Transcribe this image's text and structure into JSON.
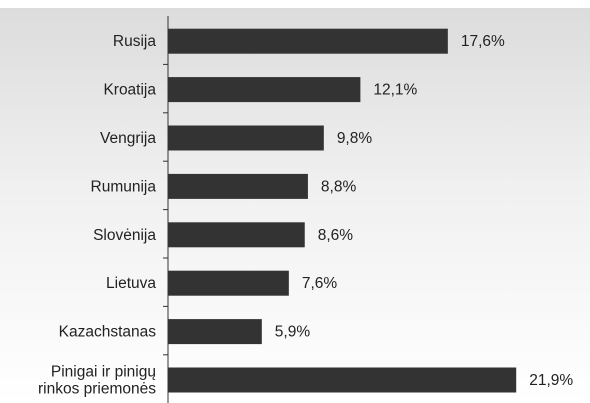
{
  "chart_data": {
    "type": "bar",
    "orientation": "horizontal",
    "title": "",
    "xlabel": "",
    "ylabel": "",
    "categories": [
      [
        "Rusija"
      ],
      [
        "Kroatija"
      ],
      [
        "Vengrija"
      ],
      [
        "Rumunija"
      ],
      [
        "Slovėnija"
      ],
      [
        "Lietuva"
      ],
      [
        "Kazachstanas"
      ],
      [
        "Pinigai ir pinigų",
        "rinkos priemonės"
      ]
    ],
    "values": [
      17.6,
      12.1,
      9.8,
      8.8,
      8.6,
      7.6,
      5.9,
      21.9
    ],
    "value_labels": [
      "17,6%",
      "12,1%",
      "9,8%",
      "8,8%",
      "8,6%",
      "7,6%",
      "5,9%",
      "21,9%"
    ],
    "xlim": [
      0,
      25
    ],
    "grid": false,
    "legend": "none",
    "bar_color": "#333333"
  }
}
